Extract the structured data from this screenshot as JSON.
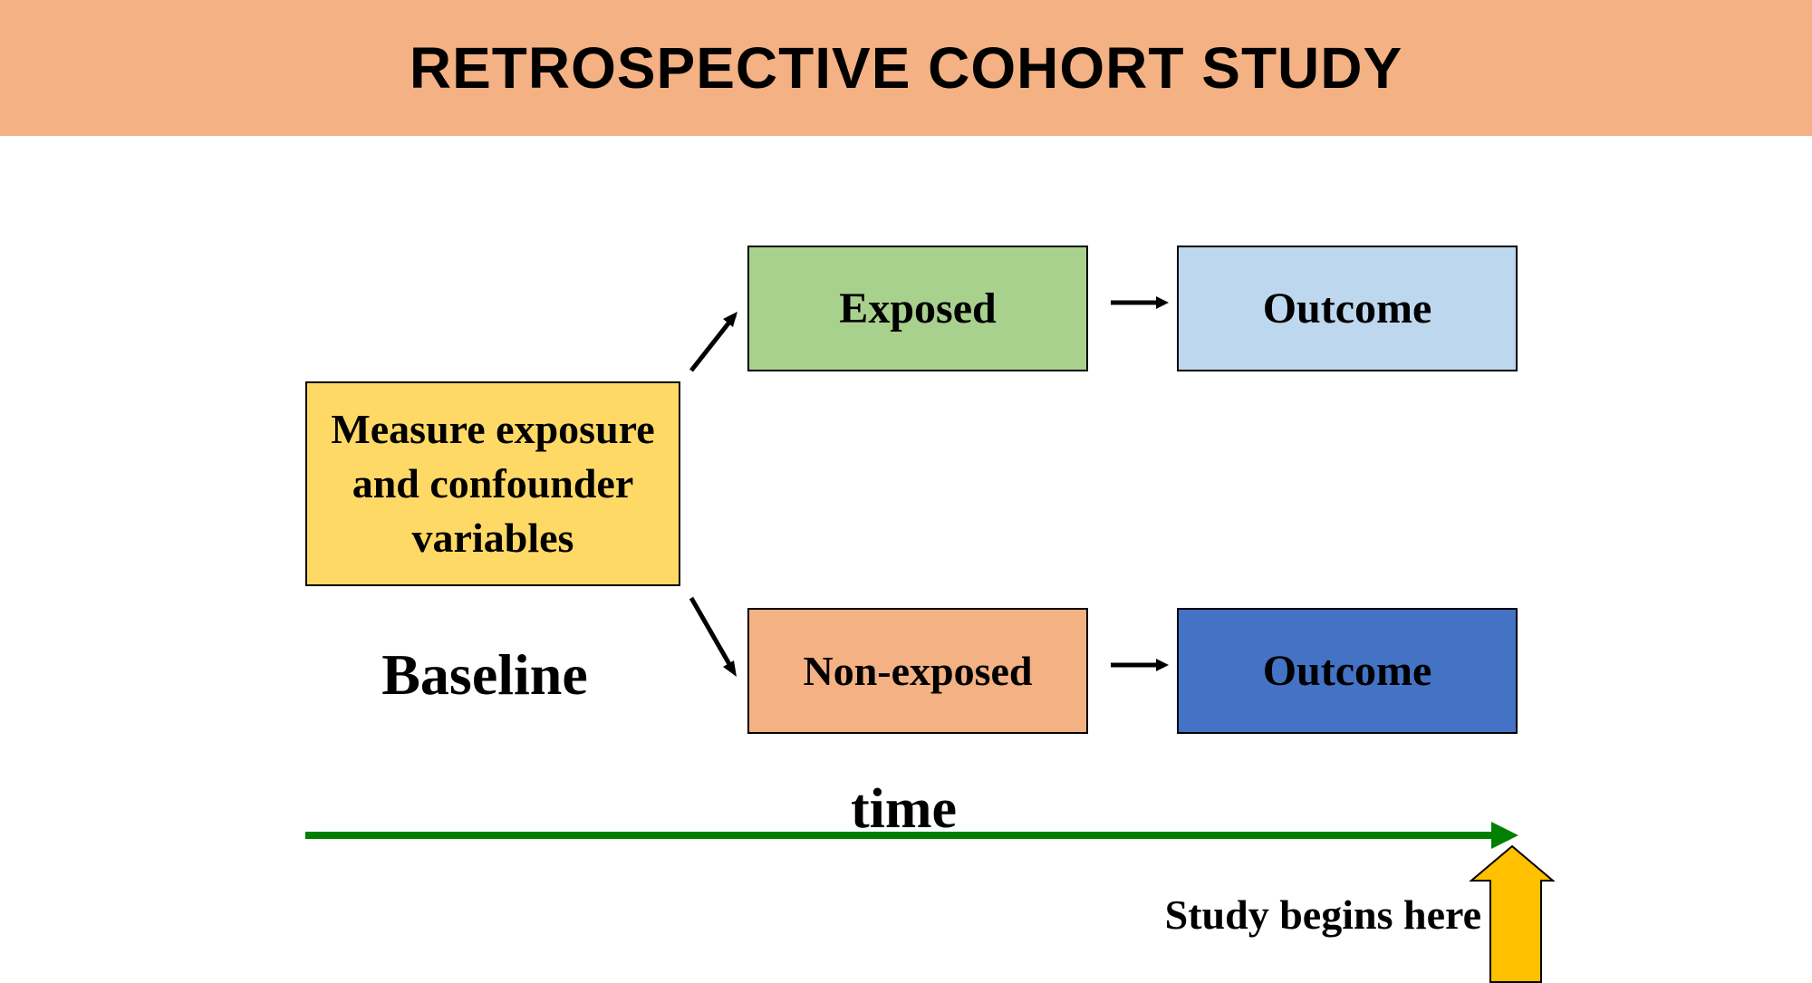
{
  "title": "RETROSPECTIVE COHORT STUDY",
  "boxes": {
    "measure": "Measure exposure and confounder variables",
    "exposed": "Exposed",
    "outcome_exposed": "Outcome",
    "non_exposed": "Non-exposed",
    "outcome_non_exposed": "Outcome"
  },
  "labels": {
    "baseline": "Baseline",
    "time": "time",
    "study_begins": "Study begins here"
  },
  "colors": {
    "title_bar": "#F4B183",
    "measure_box": "#FFD966",
    "exposed_box": "#A9D18E",
    "outcome_exposed_box": "#BDD7EE",
    "non_exposed_box": "#F4B183",
    "outcome_non_exposed_box": "#4472C4",
    "time_arrow": "#008000",
    "study_begins_arrow": "#FFC000"
  }
}
